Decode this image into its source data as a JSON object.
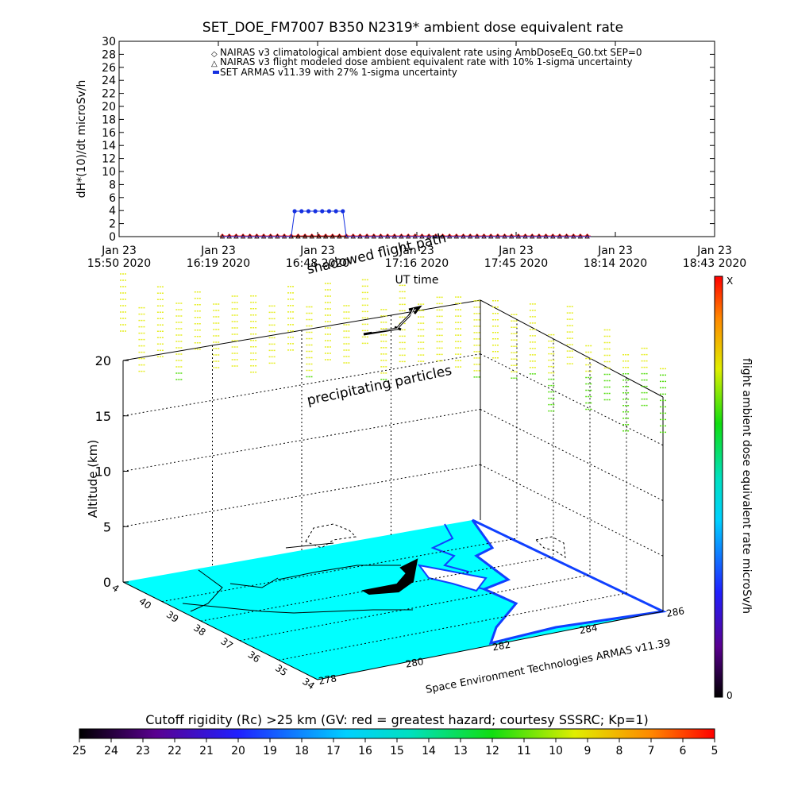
{
  "chart_data": [
    {
      "type": "line",
      "title": "SET_DOE_FM7007  B350 N2319* ambient dose equivalent rate",
      "xlabel": "UT time",
      "ylabel": "dH*(10)/dt microSv/h",
      "ylim": [
        0,
        30
      ],
      "y_ticks": [
        0,
        2,
        4,
        6,
        8,
        10,
        12,
        14,
        16,
        18,
        20,
        22,
        24,
        26,
        28,
        30
      ],
      "x_ticks": [
        {
          "top": "Jan 23",
          "bottom": "15:50 2020"
        },
        {
          "top": "Jan 23",
          "bottom": "16:19 2020"
        },
        {
          "top": "Jan 23",
          "bottom": "16:48 2020"
        },
        {
          "top": "Jan 23",
          "bottom": "17:16 2020"
        },
        {
          "top": "Jan 23",
          "bottom": "17:45 2020"
        },
        {
          "top": "Jan 23",
          "bottom": "18:14 2020"
        },
        {
          "top": "Jan 23",
          "bottom": "18:43 2020"
        }
      ],
      "x_range_minutes": [
        0,
        173
      ],
      "legend_position": "top-center",
      "series": [
        {
          "name": "NAIRAS v3 climatological ambient dose equivalent rate using AmbDoseEq_G0.txt SEP=0",
          "color": "#ff2020",
          "marker": "diamond-open",
          "x_minutes": [
            30,
            137
          ],
          "y": [
            0.1,
            0.1
          ]
        },
        {
          "name": "NAIRAS v3 flight modeled dose ambient equivalent rate with 10% 1-sigma uncertainty",
          "color": "#000000",
          "marker": "triangle-open",
          "x_minutes": [
            30,
            137
          ],
          "y": [
            0.0,
            0.0
          ]
        },
        {
          "name": "SET ARMAS v11.39 with 27% 1-sigma uncertainty",
          "color": "#1530e0",
          "marker": "filled-circle",
          "points": [
            [
              30,
              0
            ],
            [
              34,
              0
            ],
            [
              38,
              0
            ],
            [
              42,
              0
            ],
            [
              46,
              0
            ],
            [
              50,
              0
            ],
            [
              51,
              3.9
            ],
            [
              53,
              3.9
            ],
            [
              55,
              3.9
            ],
            [
              57,
              3.9
            ],
            [
              59,
              3.9
            ],
            [
              61,
              3.9
            ],
            [
              63,
              3.9
            ],
            [
              65,
              3.9
            ],
            [
              66,
              0
            ],
            [
              70,
              0
            ],
            [
              74,
              0
            ],
            [
              78,
              0
            ],
            [
              82,
              0
            ],
            [
              86,
              0
            ],
            [
              90,
              0
            ],
            [
              94,
              0
            ],
            [
              98,
              0
            ],
            [
              102,
              0
            ],
            [
              106,
              0
            ],
            [
              110,
              0
            ],
            [
              114,
              0
            ],
            [
              118,
              0
            ],
            [
              122,
              0
            ],
            [
              126,
              0
            ],
            [
              130,
              0
            ],
            [
              134,
              0
            ],
            [
              137,
              0
            ]
          ]
        }
      ]
    },
    {
      "type": "scatter",
      "description_labels": {
        "zlabel": "Altitude (km)",
        "z_ticks": [
          "0",
          "5",
          "10",
          "15",
          "20"
        ],
        "lat_ticks": [
          "4",
          "40",
          "39",
          "38",
          "37",
          "36",
          "35",
          "34"
        ],
        "lon_ticks": [
          "278",
          "280",
          "282",
          "284",
          "286"
        ],
        "annotation_shadow": "shadowed flight path",
        "annotation_particles": "precipitating particles",
        "credit": "Space Environment Technologies ARMAS v11.39"
      },
      "colorbar": {
        "label": "flight ambient dose equivalent rate microSv/h",
        "top_label": "X",
        "bottom_label": "0"
      }
    }
  ],
  "bottom_colorbar": {
    "title": "Cutoff rigidity (Rc) >25 km (GV: red = greatest hazard; courtesy SSSRC; Kp=1)",
    "ticks": [
      "25",
      "24",
      "23",
      "22",
      "21",
      "20",
      "19",
      "18",
      "17",
      "16",
      "15",
      "14",
      "13",
      "12",
      "11",
      "10",
      "9",
      "8",
      "7",
      "6",
      "5"
    ]
  },
  "colors": {
    "map_fill": "#00ffff",
    "coast_blue": "#1040ff",
    "particle_yellow": "#e6ee22",
    "particle_green": "#55dd11"
  }
}
